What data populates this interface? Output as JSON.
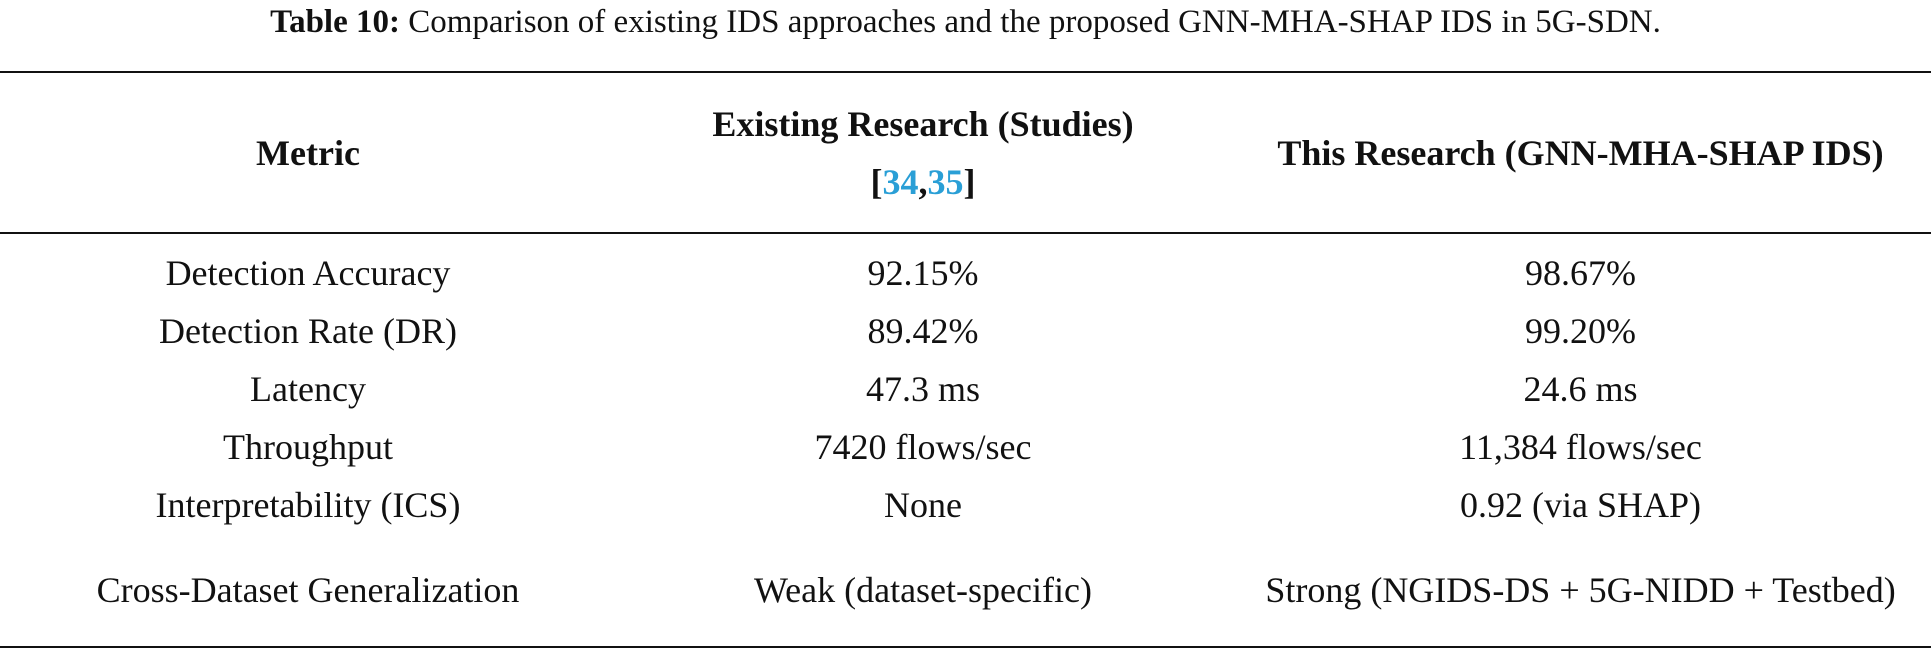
{
  "caption": {
    "label": "Table 10:",
    "text": "Comparison of existing IDS approaches and the proposed GNN-MHA-SHAP IDS in 5G-SDN."
  },
  "table": {
    "header": [
      [
        "Metric"
      ],
      [
        "Existing Research (Studies) [",
        "34",
        ",",
        "35",
        "]"
      ],
      [
        "This Research (GNN-MHA-SHAP IDS)"
      ]
    ],
    "rows": [
      [
        "Detection Accuracy",
        "92.15%",
        "98.67%"
      ],
      [
        "Detection Rate (DR)",
        "89.42%",
        "99.20%"
      ],
      [
        "Latency",
        "47.3 ms",
        "24.6 ms"
      ],
      [
        "Throughput",
        "7420 flows/sec",
        "11,384 flows/sec"
      ],
      [
        "Interpretability (ICS)",
        "None",
        "0.92 (via SHAP)"
      ],
      [
        "Cross-Dataset Generalization",
        "Weak (dataset-specific)",
        "Strong (NGIDS-DS + 5G-NIDD + Testbed)"
      ]
    ]
  }
}
